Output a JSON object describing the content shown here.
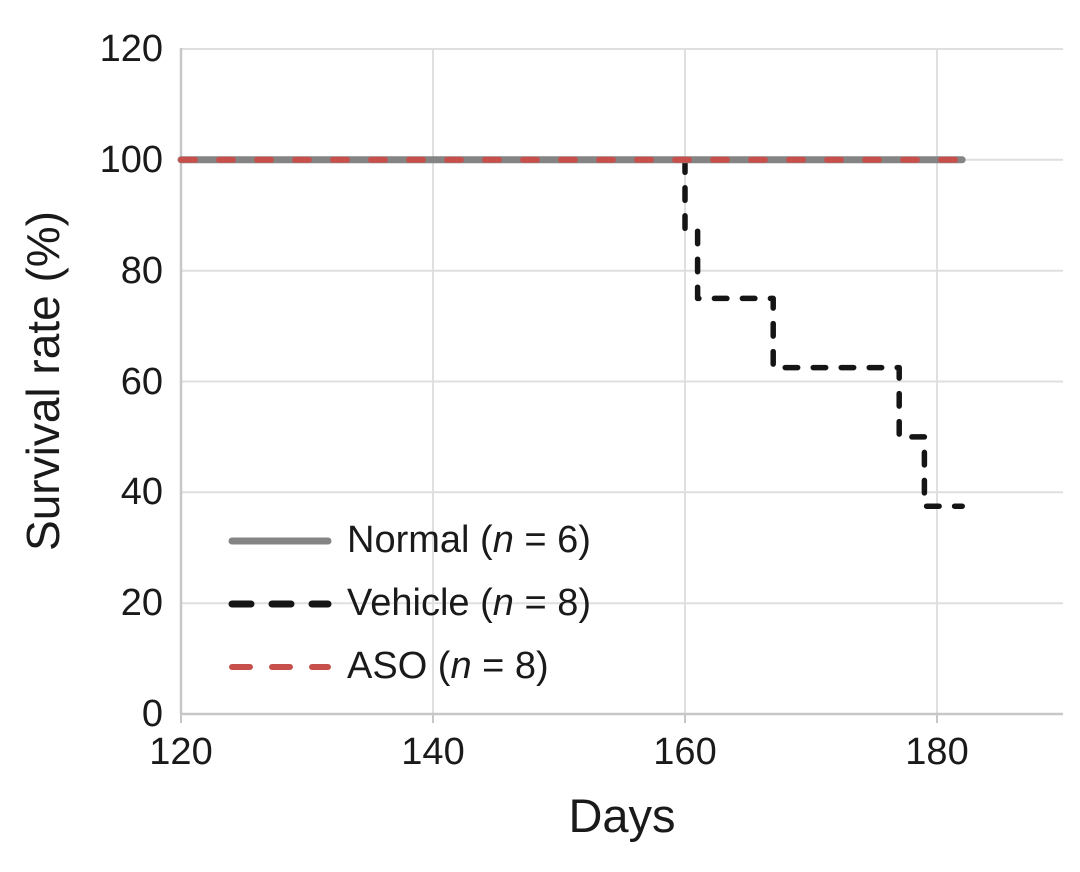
{
  "chart_data": {
    "type": "line",
    "subtype": "kaplan-meier-survival-step",
    "title": "",
    "xlabel": "Days",
    "ylabel": "Survival rate (%)",
    "xlim": [
      120,
      190
    ],
    "ylim": [
      0,
      120
    ],
    "xticks": [
      120,
      140,
      160,
      180
    ],
    "yticks": [
      0,
      20,
      40,
      60,
      80,
      100,
      120
    ],
    "grid": true,
    "legend_position": "inside-lower-left",
    "axis_color": "#c7c7c7",
    "grid_color": "#dfdfdf",
    "text_color": "#1a1a1a",
    "series": [
      {
        "name": "Normal",
        "n": 6,
        "label": "Normal (n = 6)",
        "legend": {
          "prefix": "Normal (",
          "var": "n",
          "suffix": " = 6)"
        },
        "color": "#848484",
        "style": "solid",
        "width": 7,
        "swatch_width": 7,
        "z": 1,
        "points": [
          [
            120,
            100
          ],
          [
            182,
            100
          ]
        ]
      },
      {
        "name": "Vehicle",
        "n": 8,
        "label": "Vehicle (n = 8)",
        "legend": {
          "prefix": "Vehicle (",
          "var": "n",
          "suffix": " = 8)"
        },
        "color": "#151515",
        "style": "dashed",
        "width": 5.5,
        "dash": [
          12.5,
          15.5
        ],
        "swatch_width": 7,
        "swatch_dash": [
          19,
          21
        ],
        "z": 0,
        "points": [
          [
            120,
            100
          ],
          [
            160,
            100
          ],
          [
            160,
            87.5
          ],
          [
            161,
            87.5
          ],
          [
            161,
            75
          ],
          [
            167,
            75
          ],
          [
            167,
            62.5
          ],
          [
            177,
            62.5
          ],
          [
            177,
            50
          ],
          [
            179,
            50
          ],
          [
            179,
            37.5
          ],
          [
            182,
            37.5
          ]
        ]
      },
      {
        "name": "ASO",
        "n": 8,
        "label": "ASO (n = 8)",
        "legend": {
          "prefix": "ASO (",
          "var": "n",
          "suffix": " = 8)"
        },
        "color": "#c8504c",
        "style": "dashed",
        "width": 6,
        "dash": [
          14,
          24
        ],
        "swatch_width": 6,
        "swatch_dash": [
          18,
          22
        ],
        "z": 2,
        "points": [
          [
            120,
            100
          ],
          [
            182,
            100
          ]
        ]
      }
    ]
  }
}
